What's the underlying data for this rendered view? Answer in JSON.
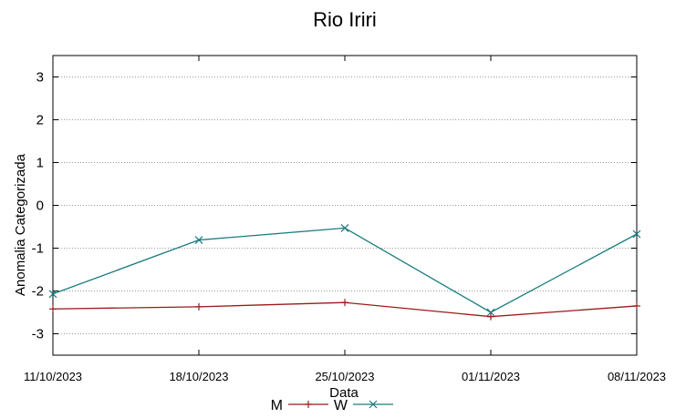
{
  "chart_data": {
    "type": "line",
    "title": "Rio Iriri",
    "xlabel": "Data",
    "ylabel": "Anomalia Categorizada",
    "categories": [
      "11/10/2023",
      "18/10/2023",
      "25/10/2023",
      "01/11/2023",
      "08/11/2023"
    ],
    "yticks": [
      "3",
      "2",
      "1",
      "0",
      "-1",
      "-2",
      "-3"
    ],
    "ylim": [
      -3.5,
      3.5
    ],
    "grid": true,
    "legend_position": "bottom",
    "series": [
      {
        "name": "M",
        "color": "#9b1b1b",
        "marker": "plus",
        "values": [
          -2.42,
          -2.37,
          -2.27,
          -2.6,
          -2.35
        ]
      },
      {
        "name": "W",
        "color": "#1a7c80",
        "marker": "cross",
        "values": [
          -2.07,
          -0.81,
          -0.53,
          -2.5,
          -0.67
        ]
      }
    ]
  }
}
